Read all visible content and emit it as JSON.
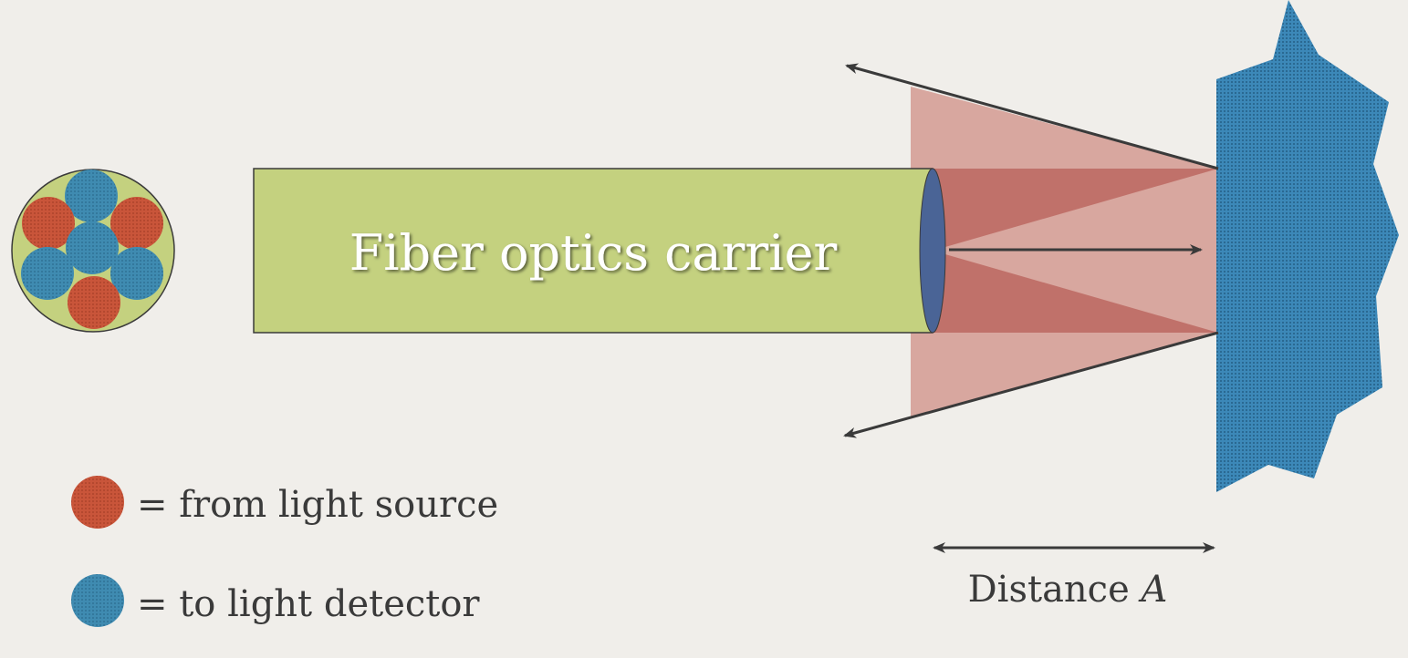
{
  "diagram": {
    "carrier_label": "Fiber optics carrier",
    "distance_label_main": "Distance ",
    "distance_label_var": "A"
  },
  "legend": {
    "source_label": "= from light source",
    "detector_label": "= to light detector"
  },
  "colors": {
    "background": "#f0eeea",
    "carrier_fill": "#c4d17f",
    "fiber_end": "#4a6496",
    "source_fiber": "#c9553a",
    "detector_fiber": "#3f8bb1",
    "surface": "#3c88b8",
    "emission_cone_light": "#d49a92",
    "emission_cone_dark": "#c0716a",
    "arrow": "#3a3a3a",
    "text_dark": "#3a3a3a",
    "text_light": "#ffffff"
  }
}
